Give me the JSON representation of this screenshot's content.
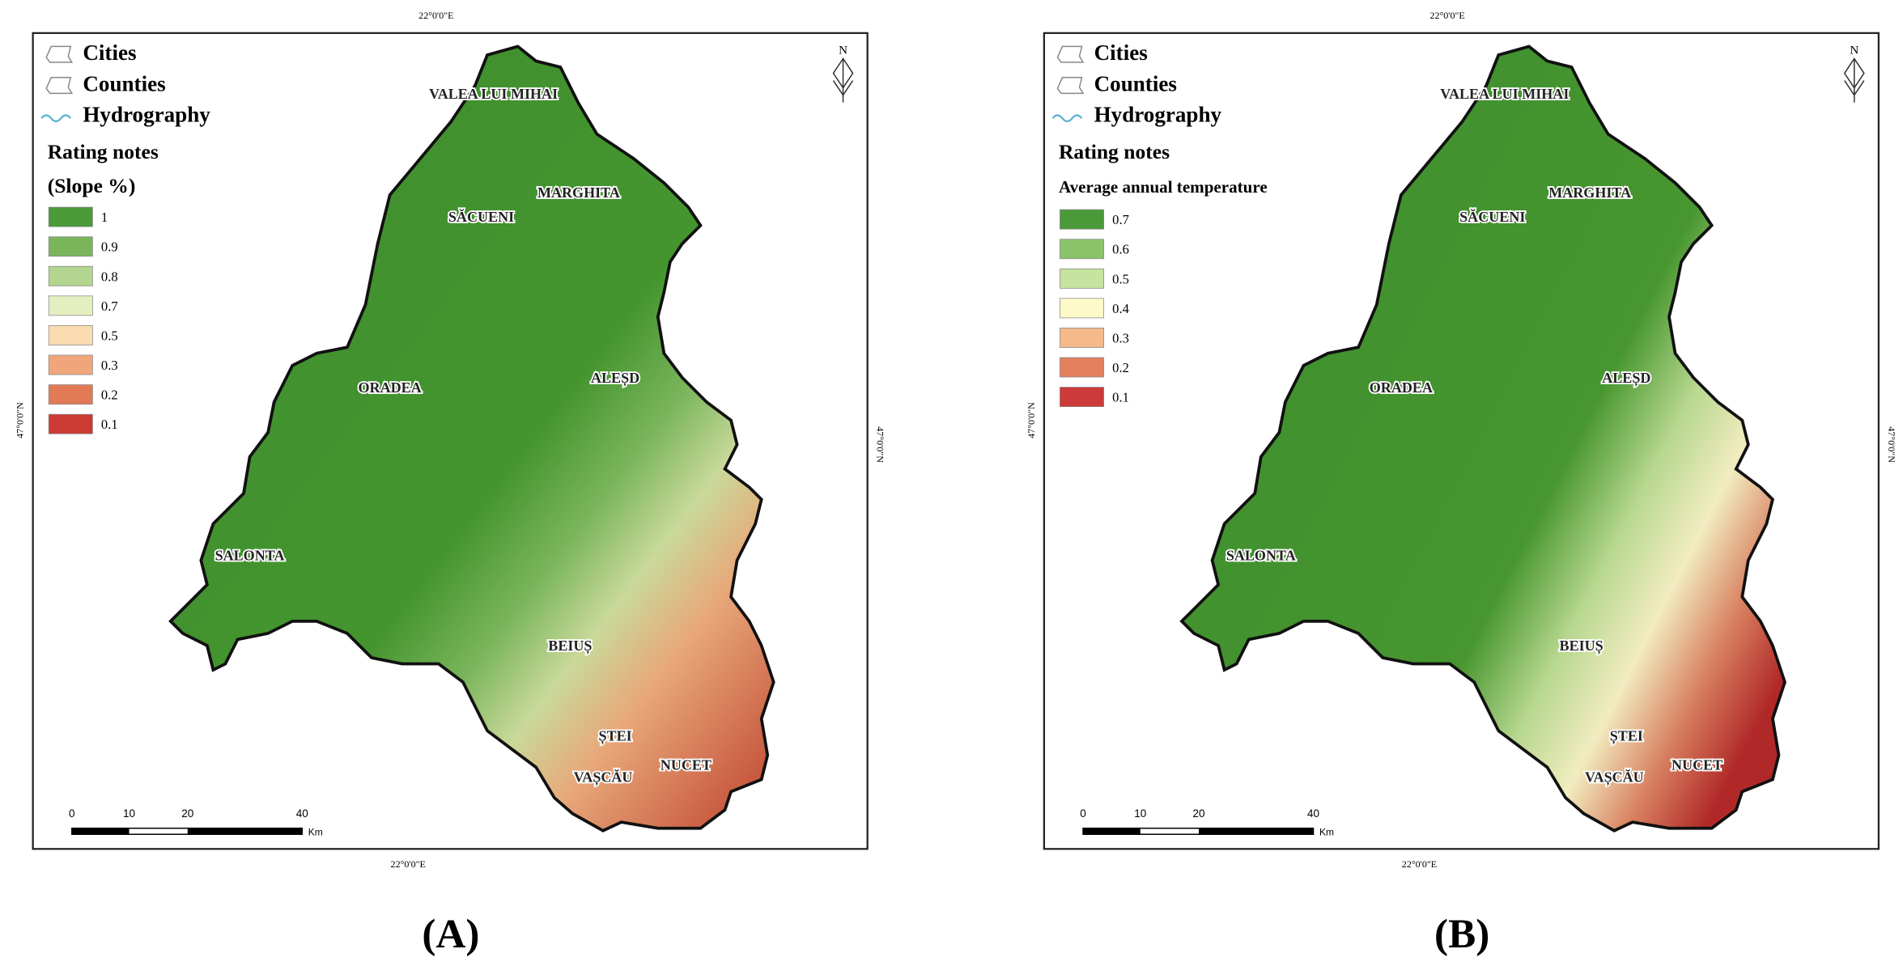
{
  "panels": [
    {
      "caption": "(A)",
      "coordinates": {
        "top": "22°0'0\"E",
        "bottom": "22°0'0\"E",
        "left": "47°0'0\"N",
        "right": "47°0'0\"N"
      },
      "north": "N",
      "legend": {
        "layers": [
          "Cities",
          "Counties",
          "Hydrography"
        ],
        "title": "Rating notes",
        "subtitle": "(Slope %)",
        "items": [
          {
            "label": "1",
            "color": "#4a9a3a"
          },
          {
            "label": "0.9",
            "color": "#7ab55c"
          },
          {
            "label": "0.8",
            "color": "#b3d58f"
          },
          {
            "label": "0.7",
            "color": "#e4efc0"
          },
          {
            "label": "0.5",
            "color": "#f9dcb0"
          },
          {
            "label": "0.3",
            "color": "#f0a67a"
          },
          {
            "label": "0.2",
            "color": "#e27a55"
          },
          {
            "label": "0.1",
            "color": "#cc3a33"
          }
        ]
      },
      "cities": [
        "VALEA LUI MIHAI",
        "MARGHITA",
        "SĂCUENI",
        "ORADEA",
        "ALEȘD",
        "SALONTA",
        "BEIUȘ",
        "ȘTEI",
        "VAȘCĂU",
        "NUCET"
      ],
      "scale": {
        "ticks": [
          "0",
          "10",
          "20",
          "40"
        ],
        "unit": "Km"
      }
    },
    {
      "caption": "(B)",
      "coordinates": {
        "top": "22°0'0\"E",
        "bottom": "22°0'0\"E",
        "left": "47°0'0\"N",
        "right": "47°0'0\"N"
      },
      "north": "N",
      "legend": {
        "layers": [
          "Cities",
          "Counties",
          "Hydrography"
        ],
        "title": "Rating notes",
        "subtitle": "Average annual temperature",
        "items": [
          {
            "label": "0.7",
            "color": "#4a9a3a"
          },
          {
            "label": "0.6",
            "color": "#8cc26a"
          },
          {
            "label": "0.5",
            "color": "#c7e3a0"
          },
          {
            "label": "0.4",
            "color": "#fdf9c8"
          },
          {
            "label": "0.3",
            "color": "#f5b98a"
          },
          {
            "label": "0.2",
            "color": "#e28060"
          },
          {
            "label": "0.1",
            "color": "#cc3a3a"
          }
        ]
      },
      "cities": [
        "VALEA LUI MIHAI",
        "MARGHITA",
        "SĂCUENI",
        "ORADEA",
        "ALEȘD",
        "SALONTA",
        "BEIUȘ",
        "ȘTEI",
        "VAȘCĂU",
        "NUCET"
      ],
      "scale": {
        "ticks": [
          "0",
          "10",
          "20",
          "40"
        ],
        "unit": "Km"
      }
    }
  ]
}
